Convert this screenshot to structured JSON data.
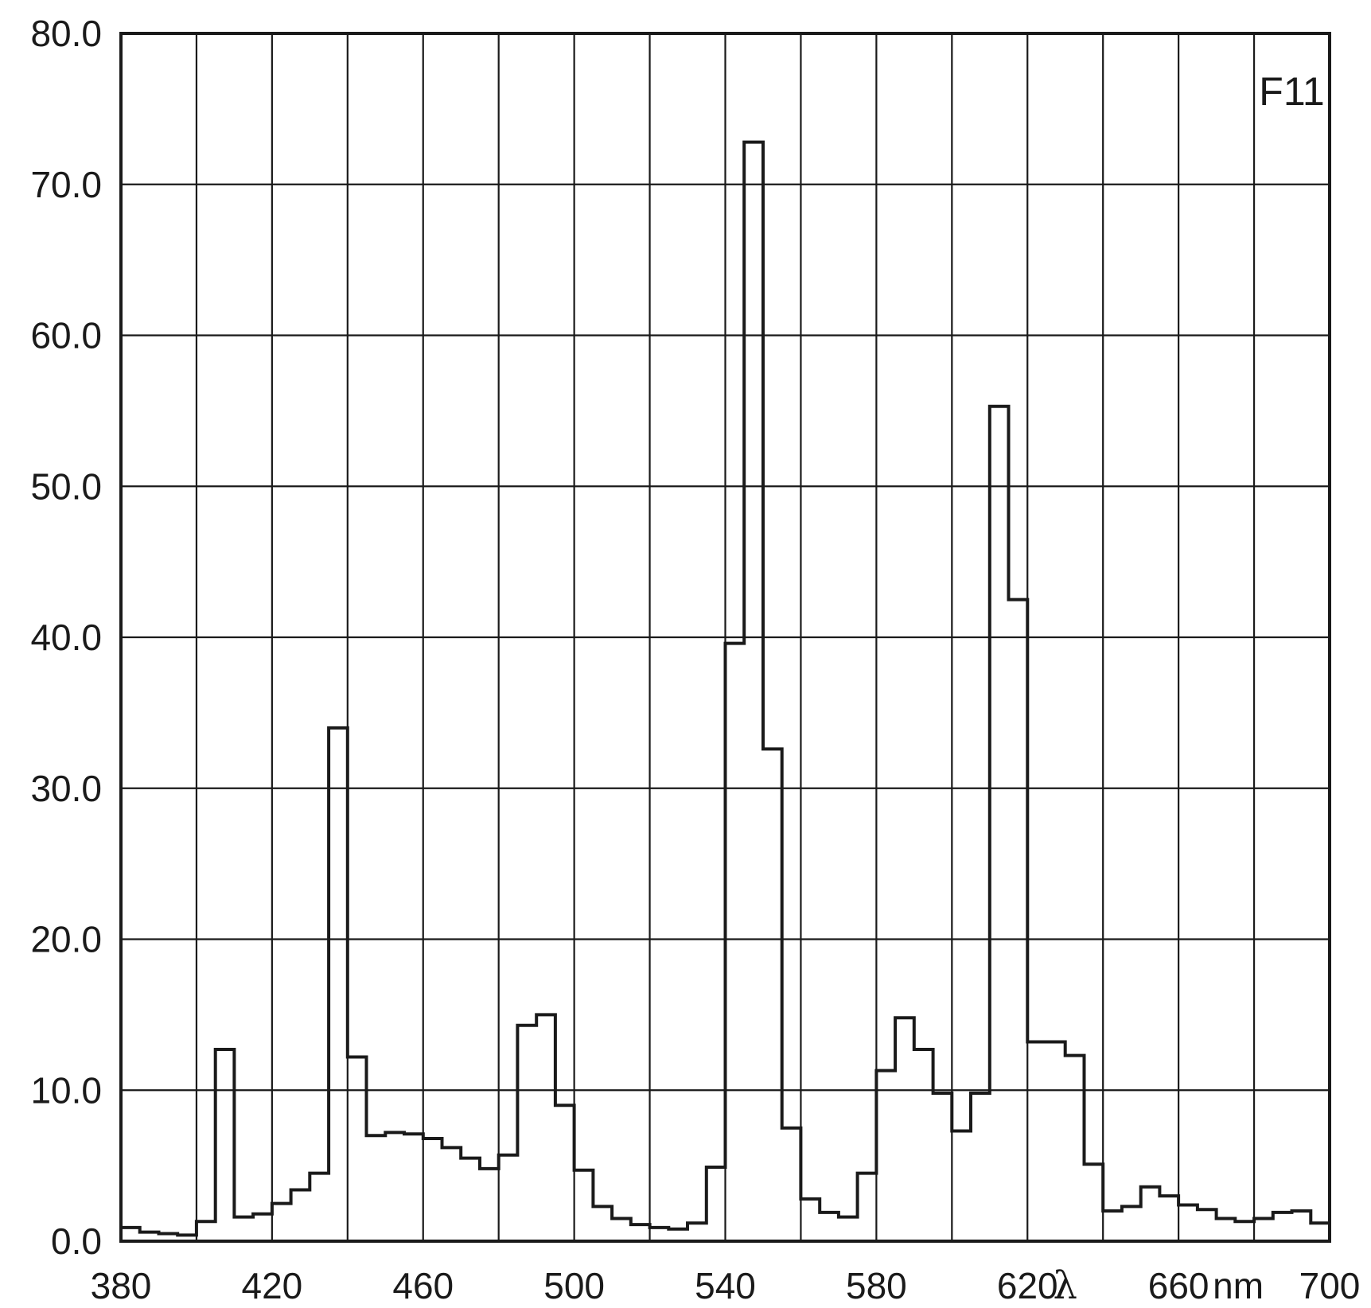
{
  "chart_data": {
    "type": "line",
    "step": "bin",
    "panel_label": "F11",
    "title": "",
    "xlabel": "λ",
    "xunit": "nm",
    "ylabel": "",
    "xlim": [
      380,
      700
    ],
    "ylim": [
      0,
      80
    ],
    "bin_width": 5,
    "grid": true,
    "x_tick_values": [
      380,
      420,
      460,
      500,
      540,
      580,
      620,
      660,
      700
    ],
    "x_tick_labels": [
      "380",
      "420",
      "460",
      "500",
      "540",
      "580",
      "620",
      "660",
      "700"
    ],
    "y_tick_values": [
      0,
      10,
      20,
      30,
      40,
      50,
      60,
      70,
      80
    ],
    "y_tick_labels": [
      "0.0",
      "10.0",
      "20.0",
      "30.0",
      "40.0",
      "50.0",
      "60.0",
      "70.0",
      "80.0"
    ],
    "series": [
      {
        "x": [
          380,
          385,
          390,
          395,
          400,
          405,
          410,
          415,
          420,
          425,
          430,
          435,
          440,
          445,
          450,
          455,
          460,
          465,
          470,
          475,
          480,
          485,
          490,
          495,
          500,
          505,
          510,
          515,
          520,
          525,
          530,
          535,
          540,
          545,
          550,
          555,
          560,
          565,
          570,
          575,
          580,
          585,
          590,
          595,
          600,
          605,
          610,
          615,
          620,
          625,
          630,
          635,
          640,
          645,
          650,
          655,
          660,
          665,
          670,
          675,
          680,
          685,
          690,
          695
        ],
        "y": [
          0.9,
          0.6,
          0.5,
          0.4,
          1.3,
          12.7,
          1.6,
          1.8,
          2.5,
          3.4,
          4.5,
          34.0,
          12.2,
          7.0,
          7.2,
          7.1,
          6.8,
          6.2,
          5.5,
          4.8,
          5.7,
          14.3,
          15.0,
          9.0,
          4.7,
          2.3,
          1.5,
          1.1,
          0.9,
          0.8,
          1.2,
          4.9,
          39.6,
          72.8,
          32.6,
          7.5,
          2.8,
          1.9,
          1.6,
          4.5,
          11.3,
          14.8,
          12.7,
          9.8,
          7.3,
          9.8,
          55.3,
          42.5,
          13.2,
          13.2,
          12.3,
          5.1,
          2.0,
          2.3,
          3.6,
          3.0,
          2.4,
          2.1,
          1.5,
          1.3,
          1.5,
          1.9,
          2.0,
          1.2
        ]
      }
    ]
  }
}
